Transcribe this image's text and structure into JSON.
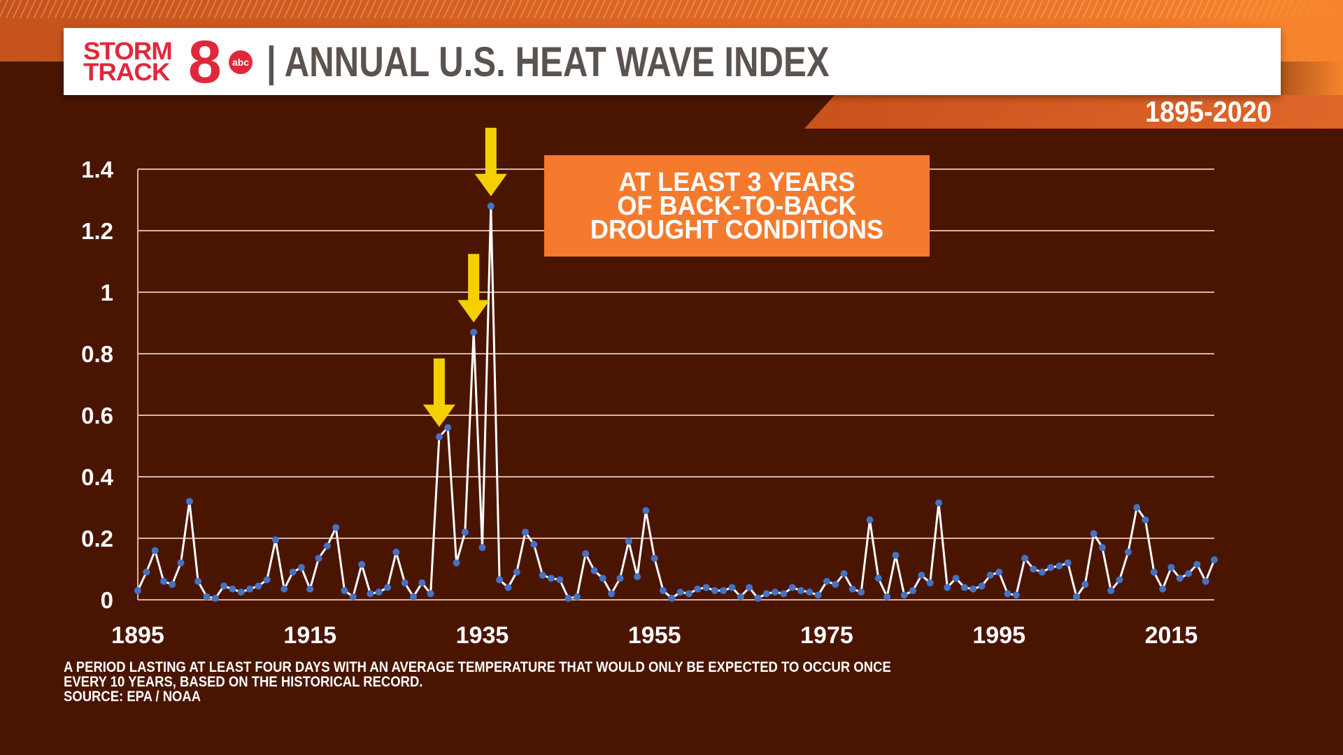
{
  "header": {
    "logo": {
      "line1": "STORM",
      "line2": "TRACK",
      "number": "8",
      "network": "abc",
      "brand_color": "#e0283c"
    },
    "separator": "|",
    "title": "ANNUAL U.S. HEAT WAVE INDEX",
    "date_range": "1895-2020"
  },
  "callout": {
    "lines": [
      "AT LEAST 3 YEARS",
      "OF BACK-TO-BACK",
      "DROUGHT CONDITIONS"
    ],
    "color": "#f47a2e",
    "arrow_color": "#f5d000",
    "arrow_years": [
      1930,
      1934,
      1936
    ]
  },
  "footnote": {
    "lines": [
      "A PERIOD LASTING AT LEAST FOUR DAYS WITH AN AVERAGE TEMPERATURE THAT WOULD ONLY BE EXPECTED TO OCCUR ONCE",
      "EVERY 10 YEARS, BASED ON THE HISTORICAL RECORD.",
      "SOURCE: EPA / NOAA"
    ]
  },
  "chart_data": {
    "type": "line",
    "title": "ANNUAL U.S. HEAT WAVE INDEX",
    "subtitle": "1895-2020",
    "xlabel": "",
    "ylabel": "",
    "xlim": [
      1895,
      2020
    ],
    "ylim": [
      0,
      1.4
    ],
    "x_ticks": [
      "1895",
      "1915",
      "1935",
      "1955",
      "1975",
      "1995",
      "2015"
    ],
    "y_ticks": [
      "0",
      "0.2",
      "0.4",
      "0.6",
      "0.8",
      "1",
      "1.2",
      "1.4"
    ],
    "grid": true,
    "line_color": "#ffffff",
    "marker_color": "#4472c4",
    "x_start": 1895,
    "values": [
      0.03,
      0.09,
      0.16,
      0.06,
      0.05,
      0.12,
      0.32,
      0.06,
      0.01,
      0.005,
      0.045,
      0.035,
      0.025,
      0.035,
      0.045,
      0.065,
      0.195,
      0.035,
      0.09,
      0.105,
      0.035,
      0.135,
      0.175,
      0.235,
      0.03,
      0.01,
      0.115,
      0.02,
      0.025,
      0.04,
      0.155,
      0.055,
      0.01,
      0.055,
      0.02,
      0.53,
      0.56,
      0.12,
      0.22,
      0.87,
      0.17,
      1.28,
      0.065,
      0.04,
      0.09,
      0.22,
      0.18,
      0.08,
      0.07,
      0.065,
      0.005,
      0.01,
      0.15,
      0.095,
      0.07,
      0.02,
      0.07,
      0.19,
      0.075,
      0.29,
      0.135,
      0.03,
      0.005,
      0.025,
      0.02,
      0.035,
      0.04,
      0.03,
      0.03,
      0.04,
      0.01,
      0.04,
      0.005,
      0.02,
      0.025,
      0.02,
      0.04,
      0.03,
      0.025,
      0.015,
      0.06,
      0.05,
      0.085,
      0.035,
      0.025,
      0.26,
      0.07,
      0.01,
      0.145,
      0.015,
      0.03,
      0.08,
      0.055,
      0.315,
      0.04,
      0.07,
      0.04,
      0.035,
      0.045,
      0.08,
      0.09,
      0.02,
      0.015,
      0.135,
      0.1,
      0.09,
      0.105,
      0.11,
      0.12,
      0.01,
      0.05,
      0.215,
      0.17,
      0.03,
      0.065,
      0.155,
      0.3,
      0.26,
      0.09,
      0.035,
      0.105,
      0.07,
      0.085,
      0.115,
      0.06,
      0.13
    ]
  }
}
